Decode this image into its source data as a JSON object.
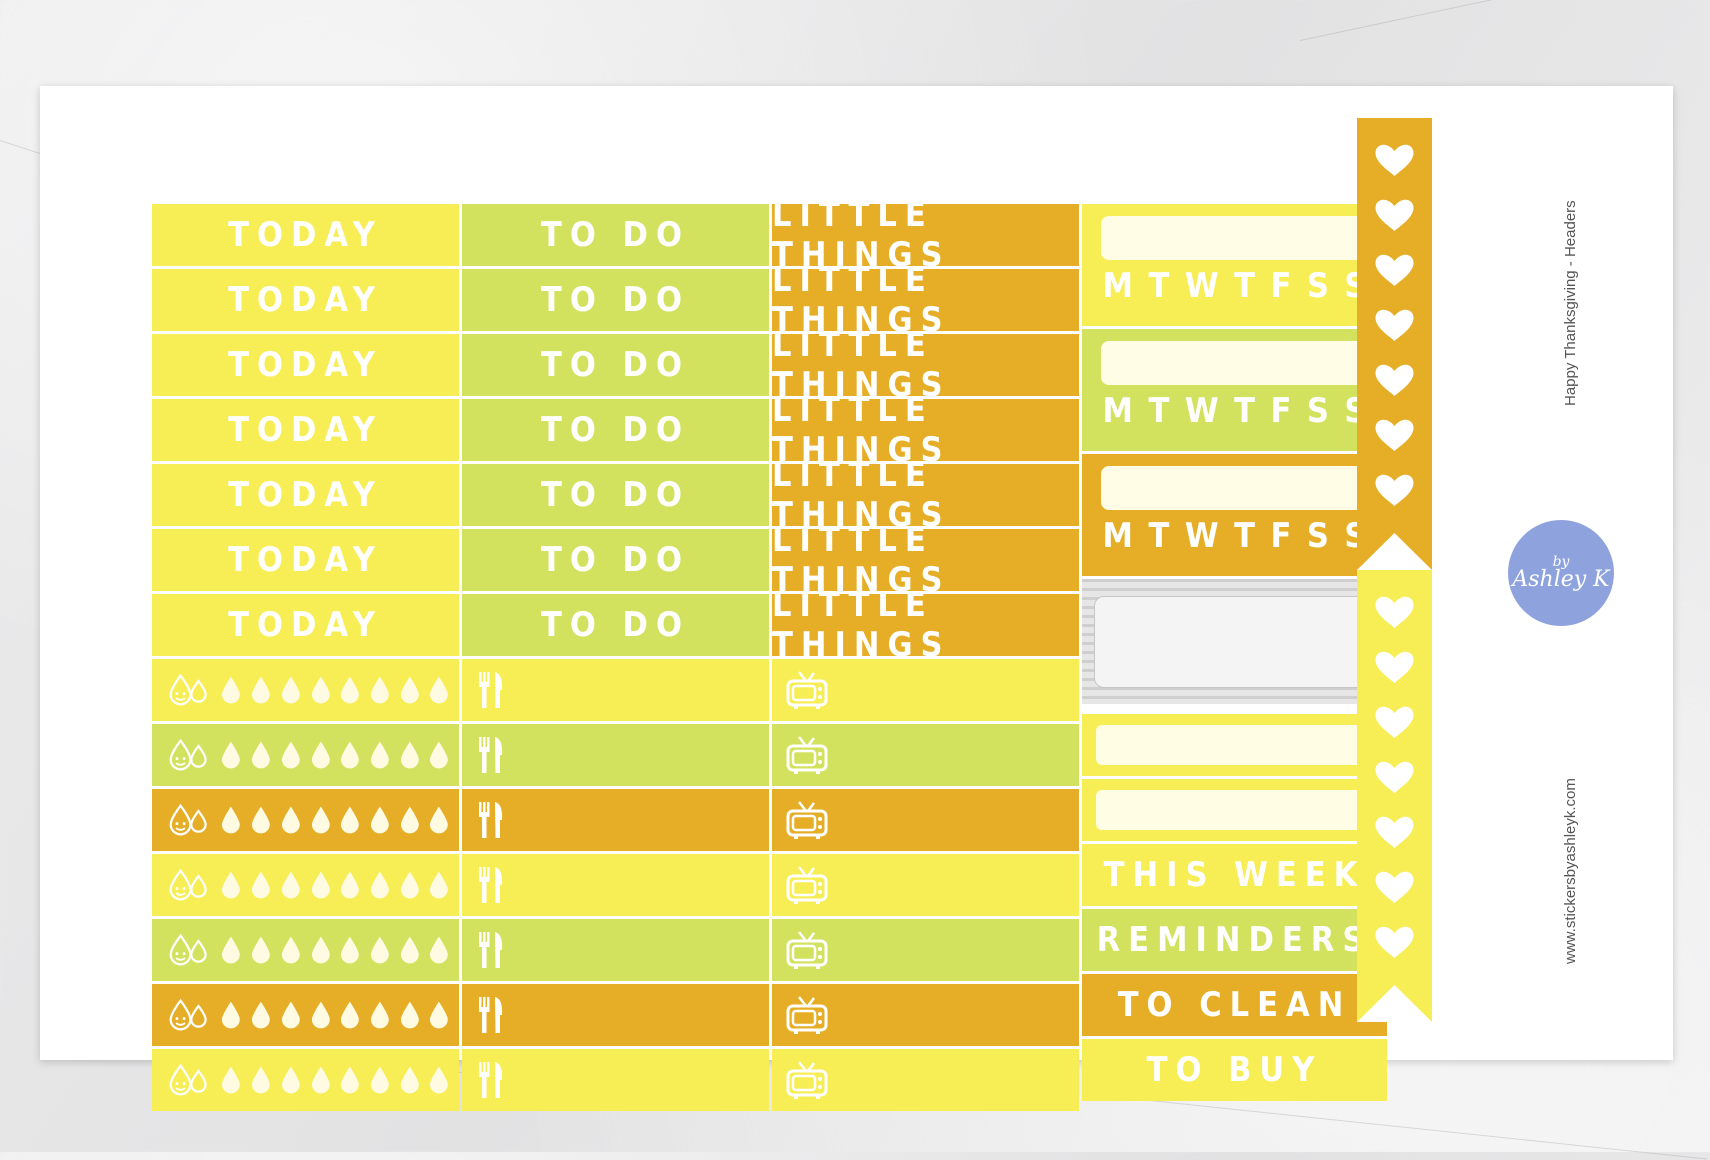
{
  "headers": {
    "today": "TODAY",
    "todo": "TO DO",
    "little": "LITTLE THINGS"
  },
  "week_days": [
    "M",
    "T",
    "W",
    "T",
    "F",
    "S",
    "S"
  ],
  "labels": {
    "this_week": "THIS WEEK",
    "reminders": "REMINDERS",
    "to_clean": "TO CLEAN",
    "to_buy": "TO BUY"
  },
  "side": {
    "title": "Happy Thanksgiving - Headers",
    "url": "www.stickersbyashleyk.com",
    "logo_top": "by",
    "logo_name": "Ashley K"
  },
  "colors": {
    "yellow": "#f7ee56",
    "green": "#d3e25e",
    "orange": "#e5ae26",
    "cream": "#fffde6"
  },
  "icons": [
    "water-drop-icon",
    "utensils-icon",
    "tv-icon",
    "heart-icon"
  ]
}
